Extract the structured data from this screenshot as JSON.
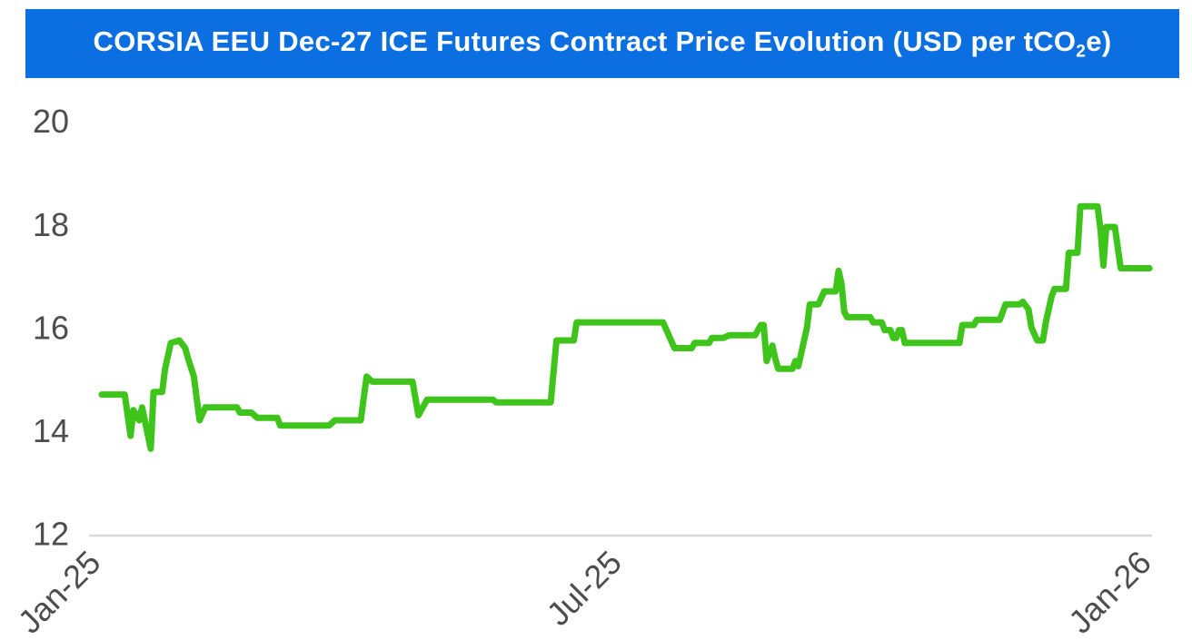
{
  "header": {
    "title_prefix": "CORSIA EEU Dec-27 ICE Futures Contract Price Evolution (USD per tCO",
    "title_subscript": "2",
    "title_suffix": "e)"
  },
  "colors": {
    "banner_blue": "#0b6fe2",
    "line_green": "#3ec41a",
    "tick_gray": "#4d4d4d",
    "baseline_gray": "#d9d9d9",
    "title_white": "#ffffff"
  },
  "chart_data": {
    "type": "line",
    "title": "CORSIA EEU Dec-27 ICE Futures Contract Price Evolution (USD per tCO2e)",
    "unit": "USD per tCO2e",
    "legend": "none",
    "grid": "x-axis baseline only",
    "ylim": [
      12,
      20.5
    ],
    "y_ticks": [
      20,
      18,
      16,
      14,
      12
    ],
    "x_ticks": [
      {
        "label": "Jan-25",
        "date": "2025-01-01"
      },
      {
        "label": "Jul-25",
        "date": "2025-07-01"
      },
      {
        "label": "Jan-26",
        "date": "2026-01-01"
      }
    ],
    "series": [
      {
        "name": "CORSIA EEU Dec-27 ICE futures settlement price",
        "points": [
          [
            "2025-01-02",
            14.7
          ],
          [
            "2025-01-10",
            14.7
          ],
          [
            "2025-01-12",
            13.9
          ],
          [
            "2025-01-13",
            14.4
          ],
          [
            "2025-01-15",
            14.2
          ],
          [
            "2025-01-16",
            14.45
          ],
          [
            "2025-01-19",
            13.65
          ],
          [
            "2025-01-20",
            14.75
          ],
          [
            "2025-01-23",
            14.75
          ],
          [
            "2025-01-24",
            15.2
          ],
          [
            "2025-01-26",
            15.7
          ],
          [
            "2025-01-29",
            15.75
          ],
          [
            "2025-01-31",
            15.6
          ],
          [
            "2025-02-01",
            15.4
          ],
          [
            "2025-02-03",
            15.05
          ],
          [
            "2025-02-05",
            14.2
          ],
          [
            "2025-02-07",
            14.45
          ],
          [
            "2025-02-18",
            14.45
          ],
          [
            "2025-02-19",
            14.35
          ],
          [
            "2025-02-23",
            14.35
          ],
          [
            "2025-02-25",
            14.25
          ],
          [
            "2025-03-04",
            14.25
          ],
          [
            "2025-03-05",
            14.1
          ],
          [
            "2025-03-22",
            14.1
          ],
          [
            "2025-03-24",
            14.2
          ],
          [
            "2025-04-02",
            14.2
          ],
          [
            "2025-04-04",
            15.05
          ],
          [
            "2025-04-06",
            14.95
          ],
          [
            "2025-04-20",
            14.95
          ],
          [
            "2025-04-22",
            14.3
          ],
          [
            "2025-04-25",
            14.6
          ],
          [
            "2025-05-18",
            14.6
          ],
          [
            "2025-05-19",
            14.55
          ],
          [
            "2025-06-07",
            14.55
          ],
          [
            "2025-06-09",
            15.75
          ],
          [
            "2025-06-15",
            15.75
          ],
          [
            "2025-06-16",
            16.1
          ],
          [
            "2025-07-16",
            16.1
          ],
          [
            "2025-07-20",
            15.6
          ],
          [
            "2025-07-26",
            15.6
          ],
          [
            "2025-07-27",
            15.7
          ],
          [
            "2025-08-01",
            15.7
          ],
          [
            "2025-08-02",
            15.8
          ],
          [
            "2025-08-06",
            15.8
          ],
          [
            "2025-08-08",
            15.85
          ],
          [
            "2025-08-17",
            15.85
          ],
          [
            "2025-08-19",
            16.05
          ],
          [
            "2025-08-20",
            16.05
          ],
          [
            "2025-08-21",
            15.35
          ],
          [
            "2025-08-23",
            15.65
          ],
          [
            "2025-08-24",
            15.4
          ],
          [
            "2025-08-25",
            15.2
          ],
          [
            "2025-08-30",
            15.2
          ],
          [
            "2025-08-31",
            15.35
          ],
          [
            "2025-09-01",
            15.25
          ],
          [
            "2025-09-04",
            16.0
          ],
          [
            "2025-09-05",
            16.45
          ],
          [
            "2025-09-08",
            16.45
          ],
          [
            "2025-09-10",
            16.7
          ],
          [
            "2025-09-14",
            16.7
          ],
          [
            "2025-09-15",
            17.1
          ],
          [
            "2025-09-16",
            16.85
          ],
          [
            "2025-09-17",
            16.3
          ],
          [
            "2025-09-18",
            16.2
          ],
          [
            "2025-09-26",
            16.2
          ],
          [
            "2025-09-27",
            16.1
          ],
          [
            "2025-09-30",
            16.1
          ],
          [
            "2025-10-01",
            15.95
          ],
          [
            "2025-10-03",
            15.95
          ],
          [
            "2025-10-04",
            15.8
          ],
          [
            "2025-10-05",
            15.8
          ],
          [
            "2025-10-06",
            15.95
          ],
          [
            "2025-10-07",
            15.95
          ],
          [
            "2025-10-08",
            15.7
          ],
          [
            "2025-10-27",
            15.7
          ],
          [
            "2025-10-28",
            16.05
          ],
          [
            "2025-11-01",
            16.05
          ],
          [
            "2025-11-02",
            16.15
          ],
          [
            "2025-11-10",
            16.15
          ],
          [
            "2025-11-12",
            16.45
          ],
          [
            "2025-11-17",
            16.45
          ],
          [
            "2025-11-18",
            16.5
          ],
          [
            "2025-11-20",
            16.35
          ],
          [
            "2025-11-21",
            16.0
          ],
          [
            "2025-11-23",
            15.75
          ],
          [
            "2025-11-25",
            15.75
          ],
          [
            "2025-11-26",
            16.1
          ],
          [
            "2025-11-28",
            16.6
          ],
          [
            "2025-11-29",
            16.75
          ],
          [
            "2025-12-03",
            16.75
          ],
          [
            "2025-12-04",
            17.45
          ],
          [
            "2025-12-07",
            17.45
          ],
          [
            "2025-12-08",
            18.35
          ],
          [
            "2025-12-14",
            18.35
          ],
          [
            "2025-12-15",
            17.9
          ],
          [
            "2025-12-16",
            17.2
          ],
          [
            "2025-12-17",
            17.95
          ],
          [
            "2025-12-20",
            17.95
          ],
          [
            "2025-12-22",
            17.15
          ],
          [
            "2025-12-23",
            17.15
          ],
          [
            "2026-01-01",
            17.15
          ]
        ]
      }
    ]
  }
}
